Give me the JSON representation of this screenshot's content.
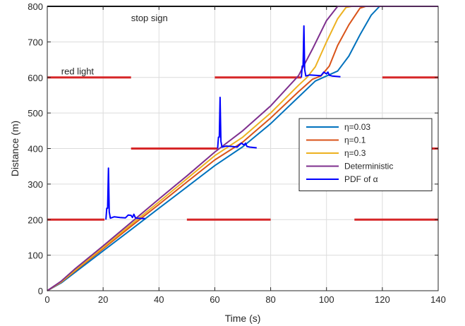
{
  "chart_data": {
    "type": "line",
    "xlabel": "Time (s)",
    "ylabel": "Distance (m)",
    "xlim": [
      0,
      140
    ],
    "ylim": [
      0,
      800
    ],
    "xticks": [
      0,
      20,
      40,
      60,
      80,
      100,
      120,
      140
    ],
    "yticks": [
      0,
      100,
      200,
      300,
      400,
      500,
      600,
      700,
      800
    ],
    "grid": true,
    "legend_position": "right",
    "annotations": [
      {
        "text": "stop sign",
        "x": 30,
        "y": 768
      },
      {
        "text": "red light",
        "x": 5,
        "y": 618
      }
    ],
    "stop_line": {
      "y": 800,
      "color": "#000000"
    },
    "red_light_segments": [
      {
        "y": 200,
        "x": [
          0,
          20.5
        ]
      },
      {
        "y": 200,
        "x": [
          50,
          80
        ]
      },
      {
        "y": 200,
        "x": [
          110,
          140
        ]
      },
      {
        "y": 400,
        "x": [
          30,
          61
        ]
      },
      {
        "y": 400,
        "x": [
          100,
          140
        ]
      },
      {
        "y": 600,
        "x": [
          0,
          30
        ]
      },
      {
        "y": 600,
        "x": [
          60,
          91
        ]
      },
      {
        "y": 600,
        "x": [
          120,
          140
        ]
      }
    ],
    "red_color": "#d62728",
    "series": [
      {
        "name": "η=0.03",
        "color": "#0072bd",
        "points": [
          [
            0,
            0
          ],
          [
            5,
            22
          ],
          [
            10,
            52
          ],
          [
            20,
            112
          ],
          [
            30,
            172
          ],
          [
            40,
            232
          ],
          [
            50,
            292
          ],
          [
            60,
            352
          ],
          [
            70,
            405
          ],
          [
            80,
            470
          ],
          [
            90,
            545
          ],
          [
            96,
            590
          ],
          [
            100,
            604
          ],
          [
            104,
            618
          ],
          [
            108,
            660
          ],
          [
            112,
            720
          ],
          [
            116,
            775
          ],
          [
            119,
            800
          ],
          [
            140,
            800
          ]
        ]
      },
      {
        "name": "η=0.1",
        "color": "#d95319",
        "points": [
          [
            0,
            0
          ],
          [
            5,
            24
          ],
          [
            10,
            56
          ],
          [
            20,
            118
          ],
          [
            30,
            181
          ],
          [
            40,
            243
          ],
          [
            50,
            306
          ],
          [
            60,
            368
          ],
          [
            70,
            418
          ],
          [
            80,
            486
          ],
          [
            90,
            560
          ],
          [
            95,
            595
          ],
          [
            98,
            604
          ],
          [
            101,
            632
          ],
          [
            104,
            690
          ],
          [
            108,
            748
          ],
          [
            112,
            795
          ],
          [
            114,
            800
          ],
          [
            140,
            800
          ]
        ]
      },
      {
        "name": "η=0.3",
        "color": "#edb120",
        "points": [
          [
            0,
            0
          ],
          [
            5,
            25
          ],
          [
            10,
            58
          ],
          [
            20,
            121
          ],
          [
            30,
            186
          ],
          [
            40,
            250
          ],
          [
            50,
            315
          ],
          [
            60,
            380
          ],
          [
            70,
            432
          ],
          [
            80,
            500
          ],
          [
            90,
            578
          ],
          [
            93,
            600
          ],
          [
            96,
            630
          ],
          [
            100,
            700
          ],
          [
            104,
            765
          ],
          [
            107,
            797
          ],
          [
            109,
            800
          ],
          [
            140,
            800
          ]
        ]
      },
      {
        "name": "Deterministic",
        "color": "#7e2f8e",
        "points": [
          [
            0,
            0
          ],
          [
            5,
            27
          ],
          [
            10,
            62
          ],
          [
            20,
            126
          ],
          [
            30,
            192
          ],
          [
            40,
            258
          ],
          [
            50,
            323
          ],
          [
            60,
            390
          ],
          [
            70,
            450
          ],
          [
            80,
            520
          ],
          [
            90,
            605
          ],
          [
            95,
            680
          ],
          [
            100,
            760
          ],
          [
            104,
            800
          ],
          [
            140,
            800
          ]
        ]
      },
      {
        "name": "PDF of α",
        "color": "#0000ff",
        "points": [
          [
            21,
            200
          ],
          [
            21.3,
            232
          ],
          [
            21.6,
            232
          ],
          [
            21.9,
            345
          ],
          [
            22.2,
            222
          ],
          [
            22.6,
            204
          ],
          [
            24,
            208
          ],
          [
            26,
            206
          ],
          [
            28,
            205
          ],
          [
            29,
            213
          ],
          [
            30,
            212
          ],
          [
            30.5,
            206
          ],
          [
            31,
            215
          ],
          [
            31.5,
            206
          ],
          [
            32,
            204
          ],
          [
            35,
            203
          ],
          [
            61,
            400
          ],
          [
            61.3,
            432
          ],
          [
            61.6,
            432
          ],
          [
            61.9,
            544
          ],
          [
            62.2,
            420
          ],
          [
            62.6,
            404
          ],
          [
            64,
            407
          ],
          [
            66,
            406
          ],
          [
            68,
            404
          ],
          [
            69.5,
            415
          ],
          [
            70.5,
            410
          ],
          [
            71,
            415
          ],
          [
            71.5,
            406
          ],
          [
            72.5,
            404
          ],
          [
            75,
            402
          ],
          [
            91,
            600
          ],
          [
            91.3,
            632
          ],
          [
            91.6,
            632
          ],
          [
            91.9,
            745
          ],
          [
            92.2,
            622
          ],
          [
            92.6,
            604
          ],
          [
            94,
            607
          ],
          [
            96,
            606
          ],
          [
            98,
            605
          ],
          [
            99,
            615
          ],
          [
            100,
            610
          ],
          [
            100.5,
            615
          ],
          [
            101,
            606
          ],
          [
            102,
            604
          ],
          [
            105,
            602
          ]
        ]
      }
    ]
  }
}
